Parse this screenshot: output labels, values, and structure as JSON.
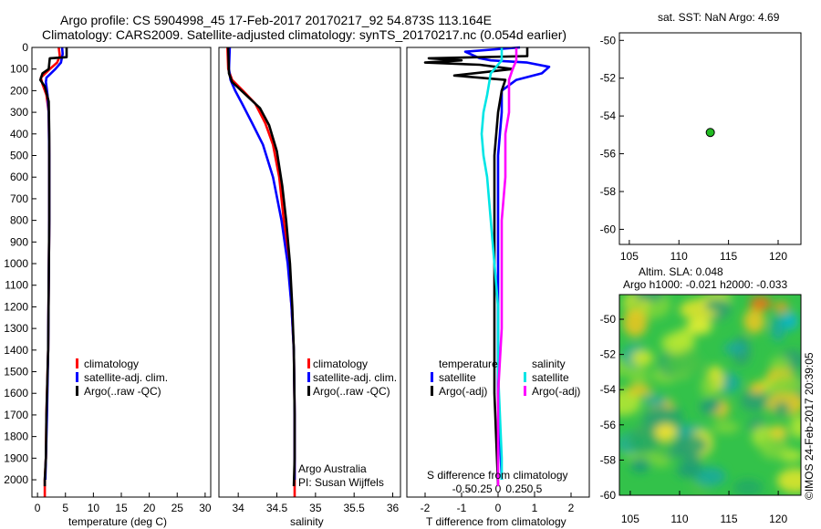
{
  "header": {
    "title_line1": "Argo profile: CS 5904998_45 17-Feb-2017 20170217_92 54.873S 113.164E",
    "title_line2": "Climatology: CARS2009. Satellite-adjusted climatology: synTS_20170217.nc (0.054d earlier)"
  },
  "colors": {
    "climatology": "#ff0000",
    "satellite": "#0000ff",
    "argo": "#000000",
    "salinity_satellite": "#00e5e5",
    "salinity_argo": "#ff00ff",
    "marker": "#22bb22"
  },
  "chart_data": [
    {
      "type": "line",
      "id": "temperature",
      "xlabel": "temperature (deg C)",
      "ylabel": "",
      "xlim": [
        -1,
        31
      ],
      "ylim": [
        2080,
        0
      ],
      "xticks": [
        "0",
        "5",
        "10",
        "15",
        "20",
        "25",
        "30"
      ],
      "xtick_values": [
        0,
        5,
        10,
        15,
        20,
        25,
        30
      ],
      "yticks": [
        "0",
        "100",
        "200",
        "300",
        "400",
        "500",
        "600",
        "700",
        "800",
        "900",
        "1000",
        "1100",
        "1200",
        "1300",
        "1400",
        "1500",
        "1600",
        "1700",
        "1800",
        "1900",
        "2000"
      ],
      "ytick_values": [
        0,
        100,
        200,
        300,
        400,
        500,
        600,
        700,
        800,
        900,
        1000,
        1100,
        1200,
        1300,
        1400,
        1500,
        1600,
        1700,
        1800,
        1900,
        2000
      ],
      "legend": [
        "climatology",
        "satellite-adj. clim.",
        "Argo(..raw -QC)"
      ],
      "legend_position": "lower-left",
      "series": [
        {
          "name": "climatology",
          "color_key": "climatology",
          "points": [
            [
              3.8,
              0
            ],
            [
              4.0,
              40
            ],
            [
              3.5,
              70
            ],
            [
              2.2,
              100
            ],
            [
              0.6,
              140
            ],
            [
              0.9,
              170
            ],
            [
              1.6,
              220
            ],
            [
              2.0,
              300
            ],
            [
              2.1,
              500
            ],
            [
              2.1,
              800
            ],
            [
              2.0,
              1100
            ],
            [
              1.9,
              1400
            ],
            [
              1.6,
              1700
            ],
            [
              1.5,
              1900
            ],
            [
              1.3,
              2000
            ],
            [
              1.3,
              2080
            ]
          ]
        },
        {
          "name": "satellite-adj. clim.",
          "color_key": "satellite",
          "points": [
            [
              4.4,
              0
            ],
            [
              4.5,
              30
            ],
            [
              4.2,
              70
            ],
            [
              3.2,
              100
            ],
            [
              1.6,
              140
            ],
            [
              1.5,
              160
            ],
            [
              1.8,
              220
            ],
            [
              2.0,
              300
            ],
            [
              2.1,
              500
            ],
            [
              2.1,
              800
            ],
            [
              2.0,
              1100
            ],
            [
              1.9,
              1400
            ],
            [
              1.7,
              1700
            ],
            [
              1.5,
              1900
            ],
            [
              1.4,
              2000
            ]
          ]
        },
        {
          "name": "Argo(..raw -QC)",
          "color_key": "argo",
          "points": [
            [
              5.2,
              0
            ],
            [
              5.2,
              45
            ],
            [
              2.2,
              50
            ],
            [
              2.0,
              100
            ],
            [
              0.9,
              120
            ],
            [
              0.5,
              150
            ],
            [
              1.3,
              180
            ],
            [
              2.0,
              250
            ],
            [
              2.1,
              400
            ],
            [
              2.1,
              800
            ],
            [
              2.0,
              1100
            ],
            [
              1.9,
              1400
            ],
            [
              1.6,
              1700
            ],
            [
              1.5,
              1900
            ],
            [
              1.3,
              2000
            ],
            [
              1.3,
              2030
            ]
          ]
        }
      ]
    },
    {
      "type": "line",
      "id": "salinity",
      "xlabel": "salinity",
      "ylabel": "",
      "xlim": [
        33.75,
        36.1
      ],
      "ylim": [
        2080,
        0
      ],
      "xticks": [
        "34",
        "34.5",
        "35",
        "35.5",
        "36"
      ],
      "xtick_values": [
        34,
        34.5,
        35,
        35.5,
        36
      ],
      "legend": [
        "climatology",
        "satellite-adj. clim.",
        "Argo(..raw -QC)"
      ],
      "legend_position": "lower-left",
      "annotation_line1": "Argo Australia",
      "annotation_line2": "PI: Susan Wijffels",
      "series": [
        {
          "name": "climatology",
          "color_key": "climatology",
          "points": [
            [
              33.86,
              0
            ],
            [
              33.87,
              100
            ],
            [
              33.92,
              150
            ],
            [
              34.06,
              200
            ],
            [
              34.22,
              260
            ],
            [
              34.35,
              350
            ],
            [
              34.45,
              450
            ],
            [
              34.53,
              600
            ],
            [
              34.59,
              800
            ],
            [
              34.65,
              1000
            ],
            [
              34.69,
              1200
            ],
            [
              34.72,
              1400
            ],
            [
              34.73,
              1700
            ],
            [
              34.73,
              1900
            ],
            [
              34.73,
              2080
            ]
          ]
        },
        {
          "name": "satellite-adj. clim.",
          "color_key": "satellite",
          "points": [
            [
              33.89,
              0
            ],
            [
              33.88,
              100
            ],
            [
              33.9,
              150
            ],
            [
              33.96,
              200
            ],
            [
              34.05,
              260
            ],
            [
              34.18,
              350
            ],
            [
              34.32,
              450
            ],
            [
              34.45,
              600
            ],
            [
              34.56,
              800
            ],
            [
              34.64,
              1000
            ],
            [
              34.69,
              1200
            ],
            [
              34.72,
              1400
            ],
            [
              34.73,
              1700
            ],
            [
              34.73,
              1900
            ],
            [
              34.73,
              2000
            ]
          ]
        },
        {
          "name": "Argo(..raw -QC)",
          "color_key": "argo",
          "points": [
            [
              33.87,
              0
            ],
            [
              33.88,
              120
            ],
            [
              33.92,
              160
            ],
            [
              34.1,
              220
            ],
            [
              34.28,
              280
            ],
            [
              34.4,
              360
            ],
            [
              34.5,
              480
            ],
            [
              34.57,
              640
            ],
            [
              34.62,
              800
            ],
            [
              34.67,
              1000
            ],
            [
              34.7,
              1200
            ],
            [
              34.72,
              1400
            ],
            [
              34.73,
              1700
            ],
            [
              34.73,
              1900
            ],
            [
              34.72,
              2030
            ]
          ]
        }
      ]
    },
    {
      "type": "line",
      "id": "difference",
      "xlabel": "T difference from climatology",
      "top_axis_label": "S difference from climatology",
      "xlim": [
        -2.5,
        2.5
      ],
      "ylim": [
        2080,
        0
      ],
      "xticks": [
        "-2",
        "-1",
        "0",
        "1",
        "2"
      ],
      "xtick_values": [
        -2,
        -1,
        0,
        1,
        2
      ],
      "s_xticks": [
        "-0.5",
        "-0.25",
        "0",
        "0.25",
        "0.5"
      ],
      "s_xtick_values": [
        -0.5,
        -0.25,
        0,
        0.25,
        0.5
      ],
      "legend_temperature_title": "temperature",
      "legend_salinity_title": "salinity",
      "legend_temperature": [
        "satellite",
        "Argo(-adj)"
      ],
      "legend_salinity": [
        "satellite",
        "Argo(-adj)"
      ],
      "series": [
        {
          "name": "temperature satellite",
          "color_key": "satellite",
          "points": [
            [
              0.6,
              0
            ],
            [
              -0.9,
              20
            ],
            [
              -0.5,
              50
            ],
            [
              -0.2,
              60
            ],
            [
              0.8,
              70
            ],
            [
              1.4,
              90
            ],
            [
              1.2,
              120
            ],
            [
              0.5,
              150
            ],
            [
              0.1,
              200
            ],
            [
              0.1,
              300
            ],
            [
              0.0,
              500
            ],
            [
              0.0,
              800
            ],
            [
              0.0,
              1200
            ],
            [
              0.0,
              1600
            ],
            [
              0.1,
              2000
            ]
          ]
        },
        {
          "name": "temperature Argo(-adj)",
          "color_key": "argo",
          "points": [
            [
              0.8,
              0
            ],
            [
              0.8,
              40
            ],
            [
              -1.9,
              50
            ],
            [
              -1.0,
              60
            ],
            [
              -2.0,
              70
            ],
            [
              -0.5,
              80
            ],
            [
              0.4,
              100
            ],
            [
              -1.2,
              130
            ],
            [
              0.2,
              150
            ],
            [
              0.1,
              200
            ],
            [
              0.0,
              300
            ],
            [
              -0.1,
              500
            ],
            [
              -0.1,
              800
            ],
            [
              -0.1,
              1200
            ],
            [
              -0.1,
              1600
            ],
            [
              0.0,
              2030
            ]
          ]
        },
        {
          "name": "salinity satellite",
          "color_key": "salinity_satellite",
          "points": [
            [
              0.1,
              0
            ],
            [
              0.1,
              60
            ],
            [
              -0.2,
              120
            ],
            [
              -0.3,
              220
            ],
            [
              -0.4,
              300
            ],
            [
              -0.45,
              400
            ],
            [
              -0.4,
              500
            ],
            [
              -0.3,
              600
            ],
            [
              -0.2,
              800
            ],
            [
              -0.1,
              1000
            ],
            [
              0.0,
              1200
            ],
            [
              0.0,
              1500
            ],
            [
              0.1,
              1900
            ],
            [
              0.1,
              2000
            ]
          ]
        },
        {
          "name": "salinity Argo(-adj)",
          "color_key": "salinity_argo",
          "points": [
            [
              0.5,
              0
            ],
            [
              0.5,
              60
            ],
            [
              0.4,
              100
            ],
            [
              0.3,
              150
            ],
            [
              0.3,
              200
            ],
            [
              0.3,
              300
            ],
            [
              0.2,
              400
            ],
            [
              0.2,
              600
            ],
            [
              0.1,
              800
            ],
            [
              0.1,
              1000
            ],
            [
              0.1,
              1300
            ],
            [
              0.0,
              1600
            ],
            [
              0.0,
              1900
            ],
            [
              0.0,
              2030
            ]
          ]
        }
      ]
    },
    {
      "type": "scatter",
      "id": "location-map",
      "title": "sat. SST: NaN Argo: 4.69",
      "xlim": [
        104,
        122.3
      ],
      "ylim": [
        -60.8,
        -49.6
      ],
      "xticks": [
        "105",
        "110",
        "115",
        "120"
      ],
      "xtick_values": [
        105,
        110,
        115,
        120
      ],
      "yticks": [
        "-50",
        "-52",
        "-54",
        "-56",
        "-58",
        "-60"
      ],
      "ytick_values": [
        -50,
        -52,
        -54,
        -56,
        -58,
        -60
      ],
      "points": [
        {
          "lon": 113.164,
          "lat": -54.873
        }
      ]
    },
    {
      "type": "heatmap",
      "id": "sla-map",
      "title_line1": "Altim. SLA: 0.048",
      "title_line2": "Argo h1000: -0.021 h2000: -0.033",
      "xlim": [
        103.9,
        122.3
      ],
      "ylim": [
        -60,
        -48.6
      ],
      "xticks": [
        "105",
        "110",
        "115",
        "120"
      ],
      "xtick_values": [
        105,
        110,
        115,
        120
      ],
      "yticks": [
        "-50",
        "-52",
        "-54",
        "-56",
        "-58",
        "-60"
      ],
      "ytick_values": [
        -50,
        -52,
        -54,
        -56,
        -58,
        -60
      ],
      "side_label": "©IMOS 24-Feb-2017 20:39:05",
      "point": {
        "lon": 113.164,
        "lat": -54.873
      }
    }
  ]
}
